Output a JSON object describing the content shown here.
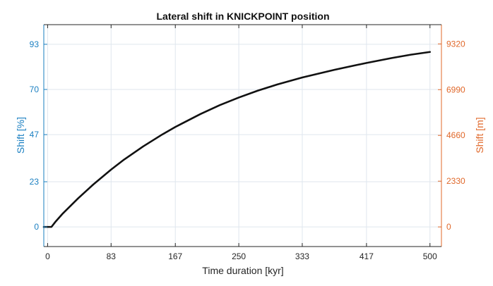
{
  "chart_data": {
    "type": "line",
    "title": "Lateral shift in KNICKPOINT position",
    "xlabel": "Time duration [kyr]",
    "ylabel_left": "Shift [%]",
    "ylabel_right": "Shift [m]",
    "xlim": [
      -5,
      515
    ],
    "ylim_left": [
      -10,
      103
    ],
    "ylim_right": [
      -1000,
      10300
    ],
    "x_ticks": [
      0,
      83,
      167,
      250,
      333,
      417,
      500
    ],
    "x_tick_labels": [
      "0",
      "83",
      "167",
      "250",
      "333",
      "417",
      "500"
    ],
    "y_left_ticks": [
      0,
      23,
      47,
      70,
      93
    ],
    "y_left_tick_labels": [
      "0",
      "23",
      "47",
      "70",
      "93"
    ],
    "y_right_ticks": [
      0,
      2330,
      4660,
      6990,
      9320
    ],
    "y_right_tick_labels": [
      "0",
      "2330",
      "4660",
      "6990",
      "9320"
    ],
    "grid": true,
    "colors": {
      "line": "#111111",
      "left_axis": "#1a7fc1",
      "right_axis": "#e0682a",
      "grid": "#dfe6ee",
      "axis": "#262626"
    },
    "series": [
      {
        "x": [
          -5,
          0,
          5,
          10,
          20,
          40,
          60,
          83,
          100,
          125,
          150,
          167,
          200,
          225,
          250,
          275,
          300,
          333,
          375,
          400,
          417,
          450,
          475,
          500
        ],
        "y": [
          0,
          0,
          0,
          2.5,
          6.9,
          14.6,
          21.7,
          29.2,
          34.3,
          41.0,
          47.1,
          50.9,
          57.5,
          62.0,
          65.9,
          69.4,
          72.5,
          76.1,
          80.0,
          82.1,
          83.5,
          86.0,
          87.7,
          89.1
        ]
      }
    ]
  }
}
